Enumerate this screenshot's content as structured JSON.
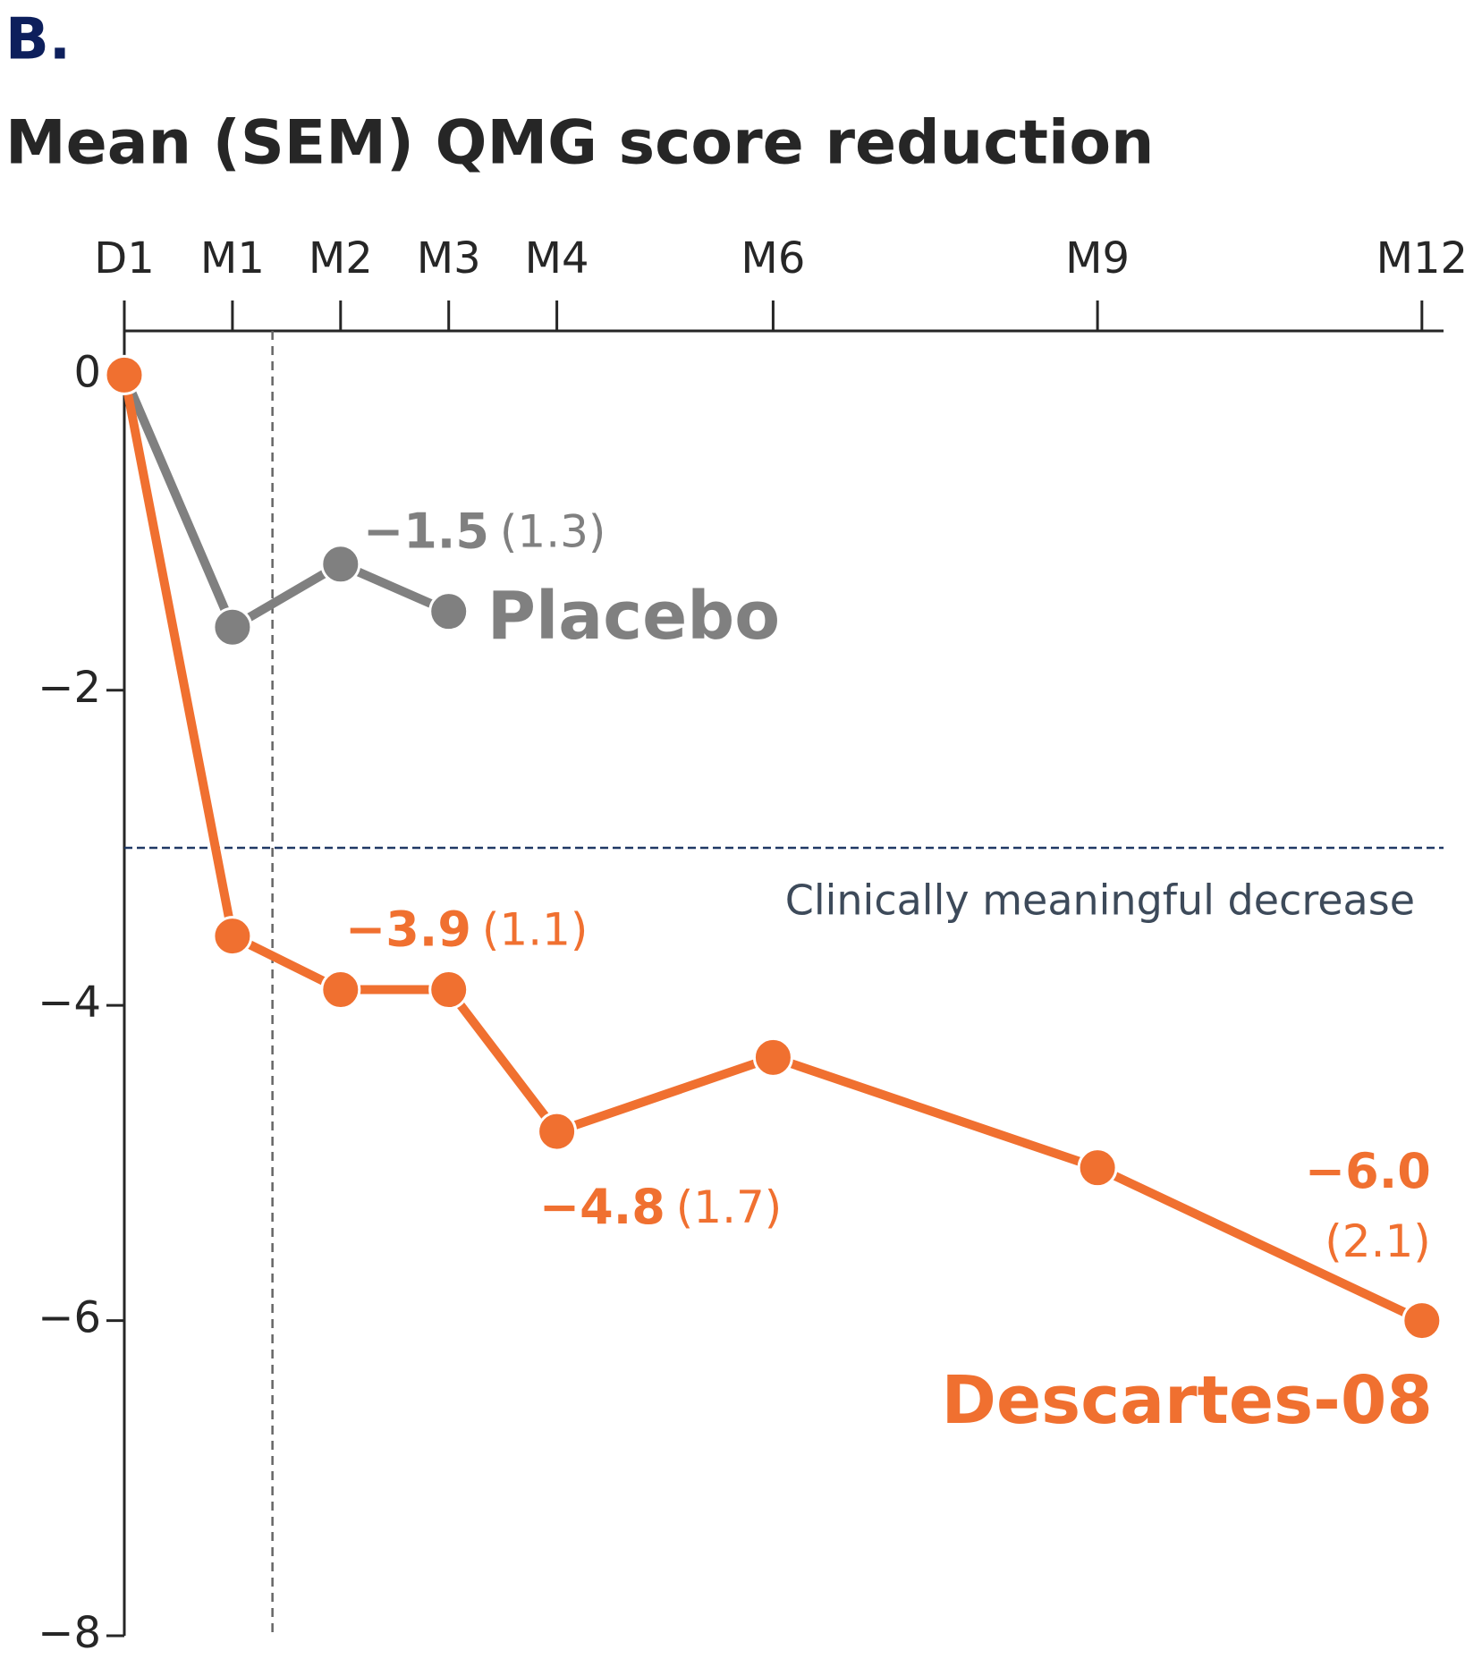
{
  "panel_label": "B.",
  "chart_data": {
    "type": "line",
    "title": "Mean (SEM) QMG score reduction",
    "x": [
      0,
      1,
      2,
      3,
      4,
      6,
      9,
      12
    ],
    "xlim": [
      0,
      12.2
    ],
    "xticks": [
      {
        "value": 0,
        "label": "D1"
      },
      {
        "value": 1,
        "label": "M1"
      },
      {
        "value": 2,
        "label": "M2"
      },
      {
        "value": 3,
        "label": "M3"
      },
      {
        "value": 4,
        "label": "M4"
      },
      {
        "value": 6,
        "label": "M6"
      },
      {
        "value": 9,
        "label": "M9"
      },
      {
        "value": 12,
        "label": "M12"
      }
    ],
    "ylim": [
      -8,
      0.28
    ],
    "yticks": [
      0,
      {
        "value": -2,
        "label": "−2"
      },
      {
        "value": -4,
        "label": "−4"
      },
      {
        "value": -6,
        "label": "−6"
      },
      {
        "value": -8,
        "label": "−8"
      }
    ],
    "reference_x": 1.37,
    "reference_y": {
      "value": -3,
      "label": "Clinically meaningful decrease"
    },
    "series": [
      {
        "name": "Placebo",
        "color": "#808080",
        "values": [
          0,
          -1.6,
          -1.2,
          -1.5,
          null,
          null,
          null,
          null
        ],
        "value_labels": [
          null,
          null,
          null,
          "−1.5",
          null,
          null,
          null,
          null
        ],
        "sem_labels": [
          null,
          null,
          null,
          "(1.3)",
          null,
          null,
          null,
          null
        ]
      },
      {
        "name": "Descartes-08",
        "color": "#f07030",
        "values": [
          0,
          -3.56,
          -3.9,
          -3.9,
          -4.8,
          -4.33,
          -5.03,
          -6.0
        ],
        "value_labels": [
          null,
          null,
          null,
          "−3.9",
          "−4.8",
          null,
          null,
          "−6.0"
        ],
        "sem_labels": [
          null,
          null,
          null,
          "(1.1)",
          "(1.7)",
          null,
          null,
          "(2.1)"
        ]
      }
    ]
  }
}
